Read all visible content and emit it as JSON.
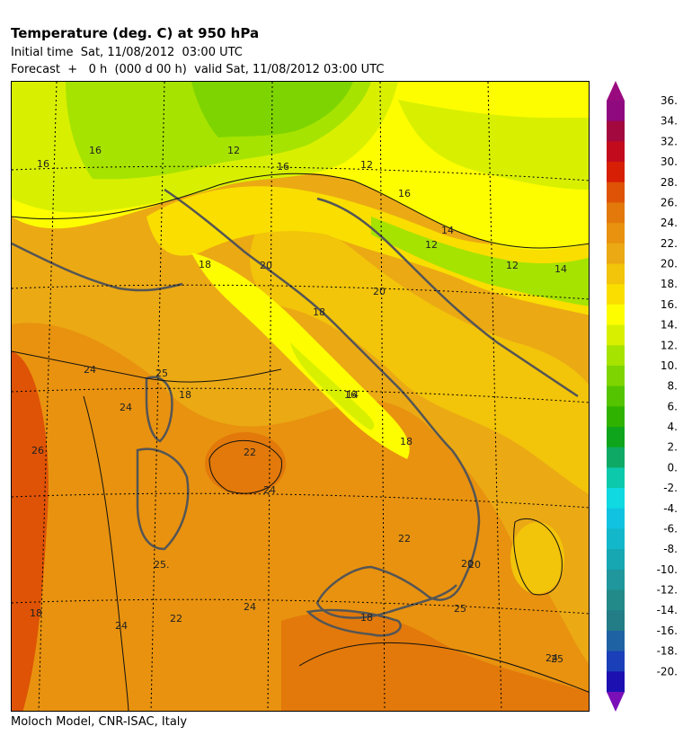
{
  "header": {
    "title": "Temperature (deg. C) at 950 hPa",
    "initial_time": "Initial time  Sat, 11/08/2012  03:00 UTC",
    "forecast": "Forecast  +   0 h  (000 d 00 h)  valid Sat, 11/08/2012 03:00 UTC"
  },
  "footer": {
    "credit": "Moloch Model, CNR-ISAC, Italy"
  },
  "legend": {
    "levels": [
      "36.",
      "34.",
      "32.",
      "30.",
      "28.",
      "26.",
      "24.",
      "22.",
      "20.",
      "18.",
      "16.",
      "14.",
      "12.",
      "10.",
      "8.",
      "6.",
      "4.",
      "2.",
      "0.",
      "-2.",
      "-4.",
      "-6.",
      "-8.",
      "-10.",
      "-12.",
      "-14.",
      "-16.",
      "-18.",
      "-20."
    ],
    "colors": [
      "#8f0a7f",
      "#a3083e",
      "#c20c1d",
      "#d61f04",
      "#de5305",
      "#e2790a",
      "#e8920f",
      "#eba914",
      "#f2c40a",
      "#f9de00",
      "#fdfd00",
      "#d8f000",
      "#a6e300",
      "#7ed400",
      "#54c400",
      "#2fb300",
      "#0ea51c",
      "#0ea964",
      "#0dc9ac",
      "#10d9e2",
      "#11c3e0",
      "#13b7ca",
      "#17a7b3",
      "#1f979c",
      "#228a88",
      "#227d86",
      "#1f62a4",
      "#1a3fb8",
      "#1c10b0"
    ],
    "top_arrow_color": "#9a0a7f",
    "bottom_arrow_color": "#7a0fb8"
  },
  "map": {
    "contour_labels": [
      "16",
      "16",
      "12",
      "16",
      "12",
      "16",
      "14",
      "12",
      "12",
      "14",
      "18",
      "20",
      "20",
      "18",
      "16",
      "14",
      "18",
      "24",
      "24",
      "25",
      "18",
      "26",
      "25.",
      "24",
      "22",
      "18",
      "25",
      "24",
      "22",
      "24",
      "20",
      "18",
      "25",
      "24",
      "22",
      "20"
    ]
  }
}
